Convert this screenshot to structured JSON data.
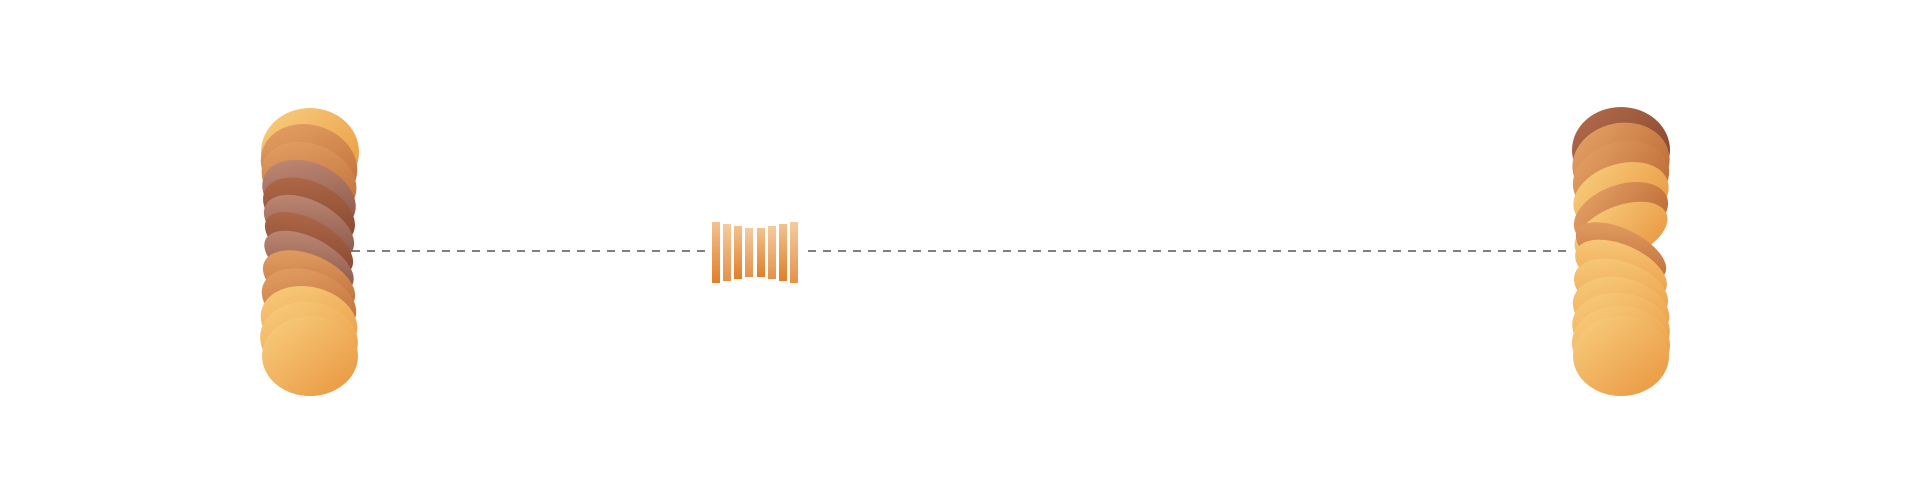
{
  "scene": {
    "background_color": "#ffffff",
    "connector_color": "#555555",
    "palette": {
      "amber_light": "#f6c46f",
      "amber": "#f0a64a",
      "orange": "#e08a35",
      "copper": "#c8743a",
      "rust": "#a35a34",
      "mauve_brown": "#8c5a4e",
      "bar_light": "#f0bd86",
      "bar_dark": "#e0822e"
    },
    "left_stack": {
      "name": "left-disc-stack",
      "disc_count": 13
    },
    "center_glyph": {
      "name": "bowtie-bars-icon",
      "bar_count": 8
    },
    "right_stack": {
      "name": "right-disc-stack",
      "disc_count": 13
    }
  }
}
